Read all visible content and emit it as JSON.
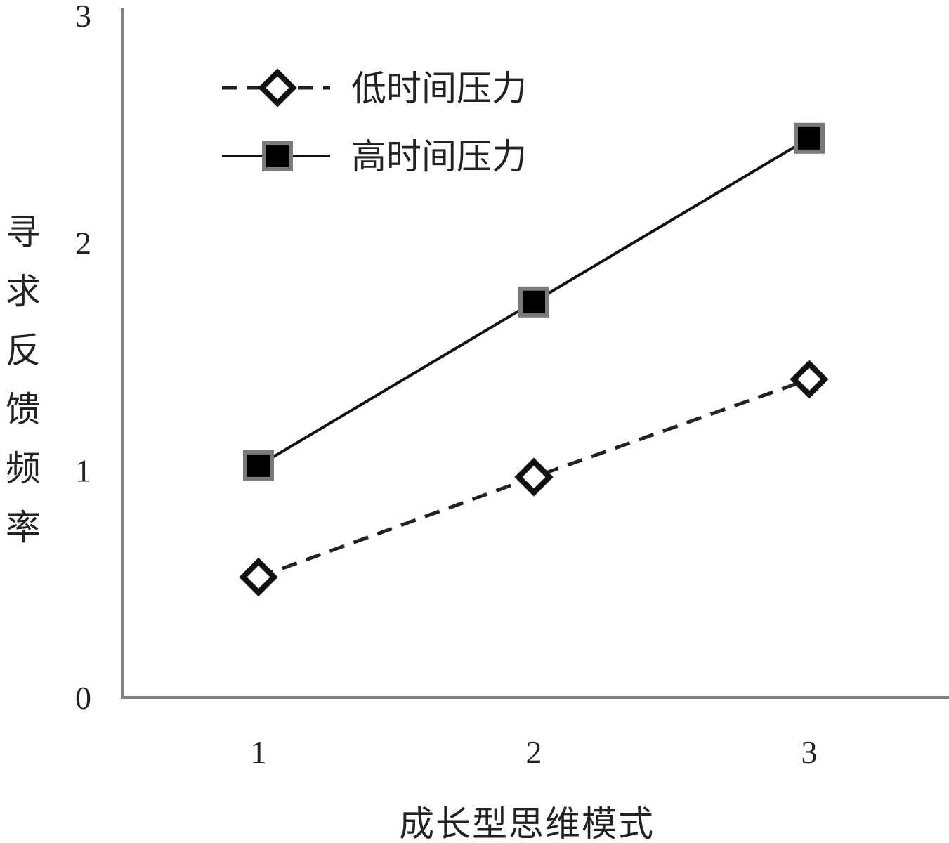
{
  "chart_data": {
    "type": "line",
    "x": [
      1,
      2,
      3
    ],
    "xlabel": "成长型思维模式",
    "ylabel": "寻求反馈频率",
    "ylim": [
      0,
      3
    ],
    "yticks": [
      "0",
      "1",
      "2",
      "3"
    ],
    "xticks": [
      "1",
      "2",
      "3"
    ],
    "grid": false,
    "legend_position": "top-left",
    "series": [
      {
        "name": "低时间压力",
        "values": [
          0.53,
          0.97,
          1.4
        ],
        "line_style": "dashed",
        "marker": "open-diamond",
        "color": "#222222"
      },
      {
        "name": "高时间压力",
        "values": [
          1.02,
          1.74,
          2.46
        ],
        "line_style": "solid",
        "marker": "filled-square",
        "color": "#111111"
      }
    ],
    "axis_color": "#808080"
  }
}
